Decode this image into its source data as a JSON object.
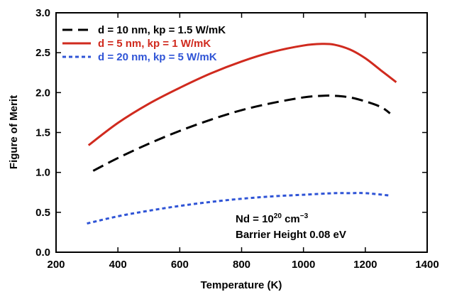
{
  "chart_data": {
    "type": "line",
    "title": "",
    "xlabel": "Temperature (K)",
    "ylabel": "Figure of Merit",
    "xlim": [
      200,
      1400
    ],
    "ylim": [
      0.0,
      3.0
    ],
    "x_ticks": [
      200,
      400,
      600,
      800,
      1000,
      1200,
      1400
    ],
    "x_tick_labels": [
      "200",
      "400",
      "600",
      "800",
      "1000",
      "1200",
      "1400"
    ],
    "y_ticks": [
      0.0,
      0.5,
      1.0,
      1.5,
      2.0,
      2.5,
      3.0
    ],
    "y_tick_labels": [
      "0.0",
      "0.5",
      "1.0",
      "1.5",
      "2.0",
      "2.5",
      "3.0"
    ],
    "grid": false,
    "legend_position": "top-left",
    "series": [
      {
        "name": "d = 10 nm, kp = 1.5 W/mK",
        "color": "#000000",
        "style": "dashed",
        "x": [
          320,
          400,
          500,
          600,
          700,
          800,
          900,
          1000,
          1060,
          1100,
          1150,
          1200,
          1250,
          1280
        ],
        "y": [
          1.02,
          1.18,
          1.36,
          1.52,
          1.66,
          1.78,
          1.87,
          1.94,
          1.96,
          1.96,
          1.94,
          1.89,
          1.82,
          1.74
        ]
      },
      {
        "name": "d = 5 nm, kp = 1 W/mK",
        "color": "#d02a1e",
        "style": "solid",
        "x": [
          305,
          400,
          500,
          600,
          700,
          800,
          900,
          1000,
          1060,
          1100,
          1150,
          1200,
          1250,
          1300
        ],
        "y": [
          1.34,
          1.62,
          1.86,
          2.06,
          2.24,
          2.39,
          2.51,
          2.59,
          2.61,
          2.6,
          2.54,
          2.43,
          2.28,
          2.13
        ]
      },
      {
        "name": "d = 20 nm, kp = 5 W/mK",
        "color": "#2f54d6",
        "style": "dotted",
        "x": [
          300,
          400,
          500,
          600,
          700,
          800,
          900,
          1000,
          1100,
          1150,
          1200,
          1280
        ],
        "y": [
          0.36,
          0.45,
          0.52,
          0.58,
          0.63,
          0.67,
          0.7,
          0.72,
          0.74,
          0.74,
          0.74,
          0.71
        ]
      }
    ],
    "annotations": [
      "Nd = 10",
      "20",
      " cm",
      "−3",
      "Barrier Height 0.08 eV"
    ]
  }
}
